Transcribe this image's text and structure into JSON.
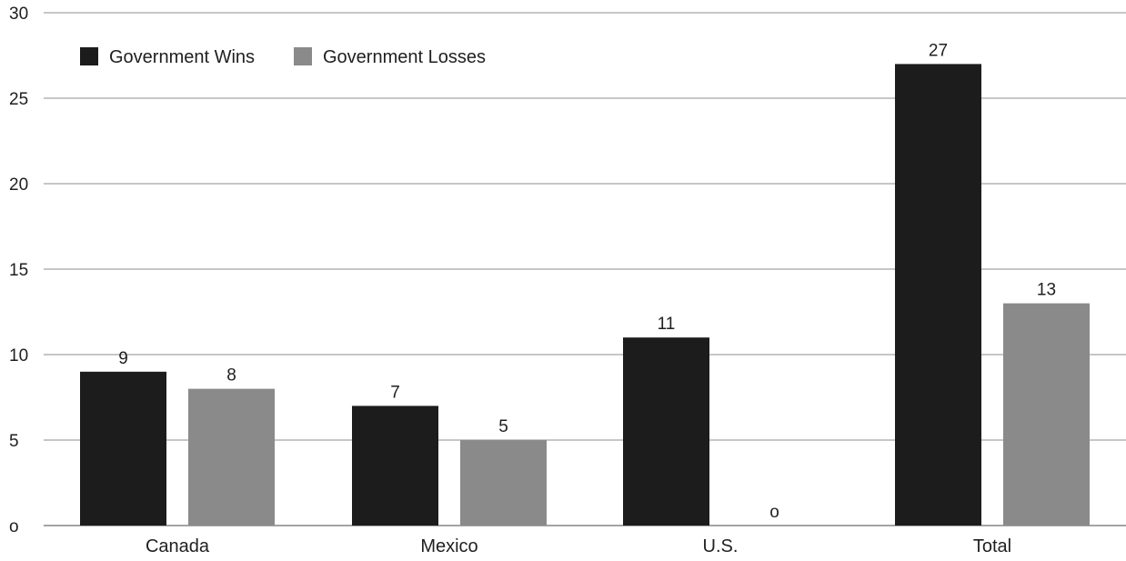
{
  "chart_data": {
    "type": "bar",
    "title": "",
    "xlabel": "",
    "ylabel": "",
    "categories": [
      "Canada",
      "Mexico",
      "U.S.",
      "Total"
    ],
    "series": [
      {
        "name": "Government Wins",
        "values": [
          9,
          7,
          11,
          27
        ],
        "color": "#1c1c1c"
      },
      {
        "name": "Government Losses",
        "values": [
          8,
          5,
          0,
          13
        ],
        "color": "#8a8a8a"
      }
    ],
    "data_labels": [
      [
        "9",
        "7",
        "11",
        "27"
      ],
      [
        "8",
        "5",
        "o",
        "13"
      ]
    ],
    "ylim": [
      0,
      30
    ],
    "yticks": [
      0,
      5,
      10,
      15,
      20,
      25,
      30
    ],
    "ytick_labels": [
      "o",
      "5",
      "10",
      "15",
      "20",
      "25",
      "30"
    ],
    "grid": true,
    "legend_position": "top-left"
  }
}
